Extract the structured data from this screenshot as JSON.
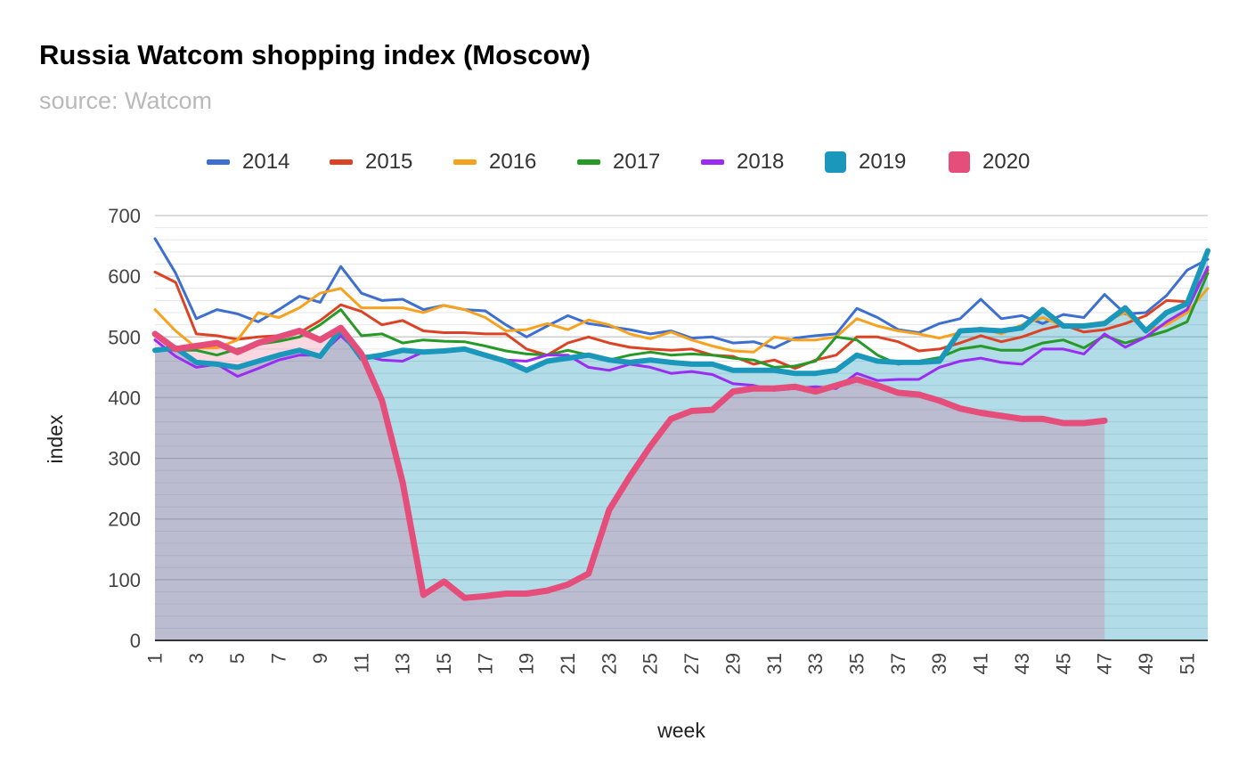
{
  "header": {
    "title": "Russia Watcom shopping index (Moscow)",
    "subtitle": "source: Watcom"
  },
  "chart_data": {
    "type": "line",
    "title": "Russia Watcom shopping index (Moscow)",
    "subtitle": "source: Watcom",
    "xlabel": "week",
    "ylabel": "index",
    "xlim": [
      1,
      52
    ],
    "ylim": [
      0,
      700
    ],
    "y_major_ticks": [
      0,
      100,
      200,
      300,
      400,
      500,
      600,
      700
    ],
    "x_tick_labels": [
      "1",
      "3",
      "5",
      "7",
      "9",
      "11",
      "13",
      "15",
      "17",
      "19",
      "21",
      "23",
      "25",
      "27",
      "29",
      "31",
      "33",
      "35",
      "37",
      "39",
      "41",
      "43",
      "45",
      "47",
      "49",
      "51"
    ],
    "grid": true,
    "legend_position": "top",
    "series": [
      {
        "name": "2014",
        "color": "#3d6fd1",
        "width": 3,
        "style": "line",
        "values": [
          662,
          605,
          530,
          545,
          538,
          525,
          545,
          567,
          557,
          616,
          572,
          560,
          562,
          545,
          552,
          545,
          543,
          520,
          500,
          518,
          535,
          522,
          517,
          512,
          505,
          510,
          498,
          500,
          490,
          492,
          482,
          498,
          502,
          505,
          547,
          532,
          512,
          507,
          522,
          530,
          562,
          530,
          535,
          522,
          537,
          532,
          570,
          538,
          540,
          568,
          610,
          628
        ]
      },
      {
        "name": "2015",
        "color": "#dc4325",
        "width": 3,
        "style": "line",
        "values": [
          607,
          590,
          505,
          502,
          496,
          500,
          502,
          507,
          527,
          553,
          542,
          520,
          527,
          510,
          507,
          507,
          505,
          505,
          480,
          470,
          490,
          500,
          490,
          483,
          480,
          478,
          480,
          470,
          468,
          455,
          462,
          448,
          462,
          470,
          500,
          500,
          492,
          477,
          480,
          490,
          502,
          492,
          500,
          512,
          520,
          508,
          512,
          522,
          535,
          560,
          558,
          610
        ]
      },
      {
        "name": "2016",
        "color": "#f6a21e",
        "width": 3,
        "style": "line",
        "values": [
          545,
          510,
          482,
          482,
          495,
          540,
          532,
          548,
          572,
          580,
          548,
          548,
          548,
          540,
          552,
          545,
          532,
          510,
          512,
          522,
          512,
          528,
          520,
          505,
          497,
          508,
          495,
          485,
          477,
          475,
          500,
          495,
          495,
          500,
          530,
          518,
          510,
          505,
          498,
          507,
          515,
          505,
          520,
          532,
          518,
          520,
          525,
          540,
          510,
          520,
          540,
          580
        ]
      },
      {
        "name": "2017",
        "color": "#269926",
        "width": 3,
        "style": "line",
        "values": [
          480,
          478,
          478,
          470,
          480,
          488,
          493,
          500,
          520,
          545,
          502,
          505,
          490,
          495,
          493,
          492,
          485,
          477,
          472,
          470,
          478,
          470,
          462,
          470,
          475,
          470,
          472,
          470,
          465,
          462,
          450,
          452,
          460,
          500,
          495,
          470,
          455,
          460,
          466,
          480,
          485,
          478,
          478,
          490,
          495,
          482,
          502,
          490,
          500,
          510,
          525,
          605
        ]
      },
      {
        "name": "2018",
        "color": "#9b2cf4",
        "width": 3,
        "style": "line",
        "values": [
          495,
          468,
          450,
          455,
          435,
          448,
          462,
          470,
          470,
          502,
          470,
          462,
          460,
          475,
          478,
          480,
          470,
          462,
          460,
          470,
          470,
          450,
          445,
          455,
          450,
          440,
          443,
          438,
          423,
          420,
          412,
          415,
          418,
          415,
          440,
          428,
          430,
          430,
          450,
          460,
          465,
          458,
          455,
          480,
          480,
          472,
          505,
          483,
          500,
          525,
          545,
          615
        ]
      },
      {
        "name": "2019",
        "color": "#1b97bb",
        "width": 6,
        "style": "area",
        "fill": "rgba(27,151,187,0.34)",
        "values": [
          478,
          482,
          458,
          455,
          450,
          460,
          470,
          478,
          468,
          512,
          465,
          470,
          478,
          475,
          477,
          480,
          470,
          460,
          445,
          460,
          465,
          470,
          462,
          458,
          462,
          458,
          455,
          455,
          445,
          445,
          445,
          440,
          440,
          445,
          470,
          460,
          458,
          458,
          460,
          510,
          512,
          510,
          515,
          545,
          518,
          518,
          522,
          548,
          510,
          540,
          555,
          642
        ]
      },
      {
        "name": "2020",
        "color": "#e54e7b",
        "width": 7,
        "style": "area",
        "fill": "rgba(229,78,123,0.22)",
        "values": [
          505,
          480,
          485,
          490,
          475,
          490,
          500,
          510,
          495,
          515,
          472,
          395,
          260,
          75,
          97,
          70,
          73,
          77,
          77,
          82,
          92,
          110,
          215,
          270,
          320,
          365,
          378,
          380,
          410,
          415,
          415,
          418,
          410,
          420,
          430,
          420,
          408,
          405,
          395,
          382,
          375,
          370,
          365,
          365,
          358,
          358,
          362
        ]
      }
    ]
  }
}
